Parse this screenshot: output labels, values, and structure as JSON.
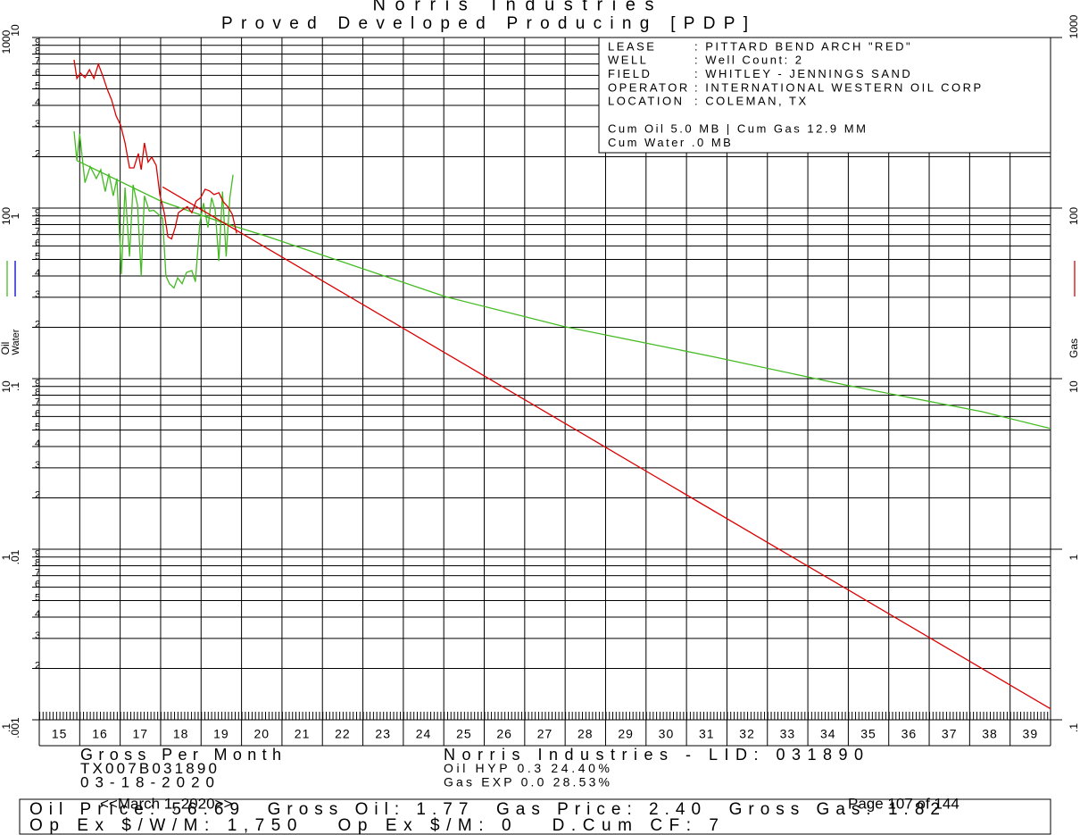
{
  "chart_data": {
    "type": "line",
    "title": "Norris Industries",
    "subtitle": "Proved Developed Producing [PDP]",
    "log_scale": true,
    "grid": true,
    "xlim": [
      15,
      40
    ],
    "xticks": [
      15,
      16,
      17,
      18,
      19,
      20,
      21,
      22,
      23,
      24,
      25,
      26,
      27,
      28,
      29,
      30,
      31,
      32,
      33,
      34,
      35,
      36,
      37,
      38,
      39
    ],
    "ylabel": "Oil",
    "ylim": [
      0.1,
      1000
    ],
    "yticks": [
      1000,
      100,
      10,
      1,
      {
        "value": 0.1,
        "label": ".1"
      }
    ],
    "minor_yticks": [
      {
        "value": 900,
        "label": "9"
      },
      {
        "value": 800,
        "label": "8"
      },
      {
        "value": 700,
        "label": "7"
      },
      {
        "value": 600,
        "label": "6"
      },
      {
        "value": 500,
        "label": "5"
      },
      {
        "value": 400,
        "label": "4"
      },
      {
        "value": 300,
        "label": "3"
      },
      {
        "value": 200,
        "label": "2"
      },
      {
        "value": 90,
        "label": "9"
      },
      {
        "value": 80,
        "label": "8"
      },
      {
        "value": 70,
        "label": "7"
      },
      {
        "value": 60,
        "label": "6"
      },
      {
        "value": 50,
        "label": "5"
      },
      {
        "value": 40,
        "label": "4"
      },
      {
        "value": 30,
        "label": "3"
      },
      {
        "value": 20,
        "label": "2"
      },
      {
        "value": 9,
        "label": "9"
      },
      {
        "value": 8,
        "label": "8"
      },
      {
        "value": 7,
        "label": "7"
      },
      {
        "value": 6,
        "label": "6"
      },
      {
        "value": 5,
        "label": "5"
      },
      {
        "value": 4,
        "label": "4"
      },
      {
        "value": 3,
        "label": "3"
      },
      {
        "value": 2,
        "label": "2"
      },
      {
        "value": 0.9,
        "label": "9"
      },
      {
        "value": 0.8,
        "label": "8"
      },
      {
        "value": 0.7,
        "label": "7"
      },
      {
        "value": 0.6,
        "label": "6"
      },
      {
        "value": 0.5,
        "label": "5"
      },
      {
        "value": 0.4,
        "label": "4"
      },
      {
        "value": 0.3,
        "label": "3"
      },
      {
        "value": 0.2,
        "label": "2"
      }
    ],
    "water_label": "Water",
    "water_lim": [
      0.001,
      10
    ],
    "water_ticks": [
      10,
      1,
      {
        "value": 0.1,
        "label": ".1"
      },
      {
        "value": 0.01,
        "label": ".01"
      },
      {
        "value": 0.001,
        "label": ".001"
      }
    ],
    "y2label": "Gas",
    "y2lim": [
      0.1,
      1000
    ],
    "y2ticks": [
      1000,
      100,
      10,
      1,
      {
        "value": 0.1,
        "label": ".1"
      }
    ],
    "series": [
      {
        "name": "Oil",
        "color": "#44bb22",
        "x": [
          15.86,
          15.93,
          16.0,
          16.13,
          16.26,
          16.41,
          16.52,
          16.63,
          16.72,
          16.83,
          16.92,
          17.03,
          17.12,
          17.23,
          17.32,
          17.43,
          17.52,
          17.6,
          17.72,
          17.83,
          17.94,
          18.05,
          18.13,
          18.22,
          18.33,
          18.42,
          18.53,
          18.64,
          18.77,
          18.86,
          18.97,
          19.06,
          19.17,
          19.26,
          19.35,
          19.44,
          19.53,
          19.62,
          19.71,
          19.79
        ],
        "values": [
          282,
          190,
          272,
          141,
          175,
          149,
          168,
          125,
          159,
          118,
          149,
          41,
          132,
          52,
          137,
          104,
          40,
          118,
          96,
          97,
          92,
          87,
          40,
          36,
          34,
          39,
          36,
          42,
          43,
          37,
          82,
          107,
          77,
          115,
          97,
          49,
          125,
          52,
          115,
          157
        ],
        "forecast": {
          "x": [
            15.93,
            18.0,
            19.55,
            20.65,
            25.07,
            27.94,
            31.69,
            35.0,
            38.31,
            40.0
          ],
          "values": [
            190,
            110,
            82,
            68,
            30.1,
            20.3,
            13.4,
            9.1,
            6.4,
            5.1
          ]
        }
      },
      {
        "name": "Gas",
        "color": "#dd0000",
        "axis": "y2",
        "x": [
          15.86,
          15.93,
          16.02,
          16.13,
          16.24,
          16.35,
          16.46,
          16.57,
          16.68,
          16.79,
          16.9,
          17.01,
          17.12,
          17.23,
          17.34,
          17.45,
          17.52,
          17.6,
          17.69,
          17.78,
          17.89,
          17.98,
          18.09,
          18.18,
          18.27,
          18.36,
          18.44,
          18.55,
          18.66,
          18.77,
          18.88,
          18.99,
          19.1,
          19.21,
          19.32,
          19.44,
          19.55,
          19.66,
          19.77,
          19.88
        ],
        "values": [
          740,
          575,
          618,
          582,
          648,
          575,
          697,
          595,
          498,
          430,
          347,
          307,
          241,
          172,
          172,
          209,
          168,
          241,
          186,
          199,
          178,
          120,
          94,
          68,
          66,
          77,
          94,
          98,
          102,
          94,
          110,
          115,
          129,
          126,
          120,
          123,
          109,
          102,
          92,
          71
        ],
        "forecast": {
          "x": [
            18.05,
            25.0,
            30.0,
            35.0,
            40.0
          ],
          "values": [
            133,
            14.3,
            2.87,
            0.577,
            0.116
          ]
        }
      },
      {
        "name": "Water",
        "color": "#0000cc",
        "axis": "water",
        "x": [],
        "values": []
      }
    ]
  },
  "info": {
    "rows": [
      {
        "key": "LEASE",
        "value": ": PITTARD BEND ARCH \"RED\""
      },
      {
        "key": "WELL",
        "value": ": Well Count: 2"
      },
      {
        "key": "FIELD",
        "value": ": WHITLEY - JENNINGS SAND"
      },
      {
        "key": "OPERATOR",
        "value": ": INTERNATIONAL WESTERN OIL CORP"
      },
      {
        "key": "LOCATION",
        "value": ": COLEMAN, TX"
      }
    ],
    "cum": [
      "Cum Oil 5.0 MB | Cum Gas 12.9 MM",
      "Cum Water .0 MB"
    ]
  },
  "page": {
    "left_notes": [
      "Gross Per Month",
      "TX007B031890",
      "03-18-2020"
    ],
    "center_notes": [
      "Norris Industries - LID: 031890",
      "Oil HYP 0.3 24.40%",
      "Gas EXP 0.0 28.53%"
    ],
    "footer_lines": [
      "Oil Price: 56.69  Gross Oil: 1.77  Gas Price: 2.40  Gross Gas: 1.82",
      "Op Ex $/W/M: 1,750   Op Ex $/M: 0   D.Cum CF: 7"
    ],
    "overlay_date": "<<March 1, 2020>>",
    "page_number": "Page 107 of 144"
  }
}
